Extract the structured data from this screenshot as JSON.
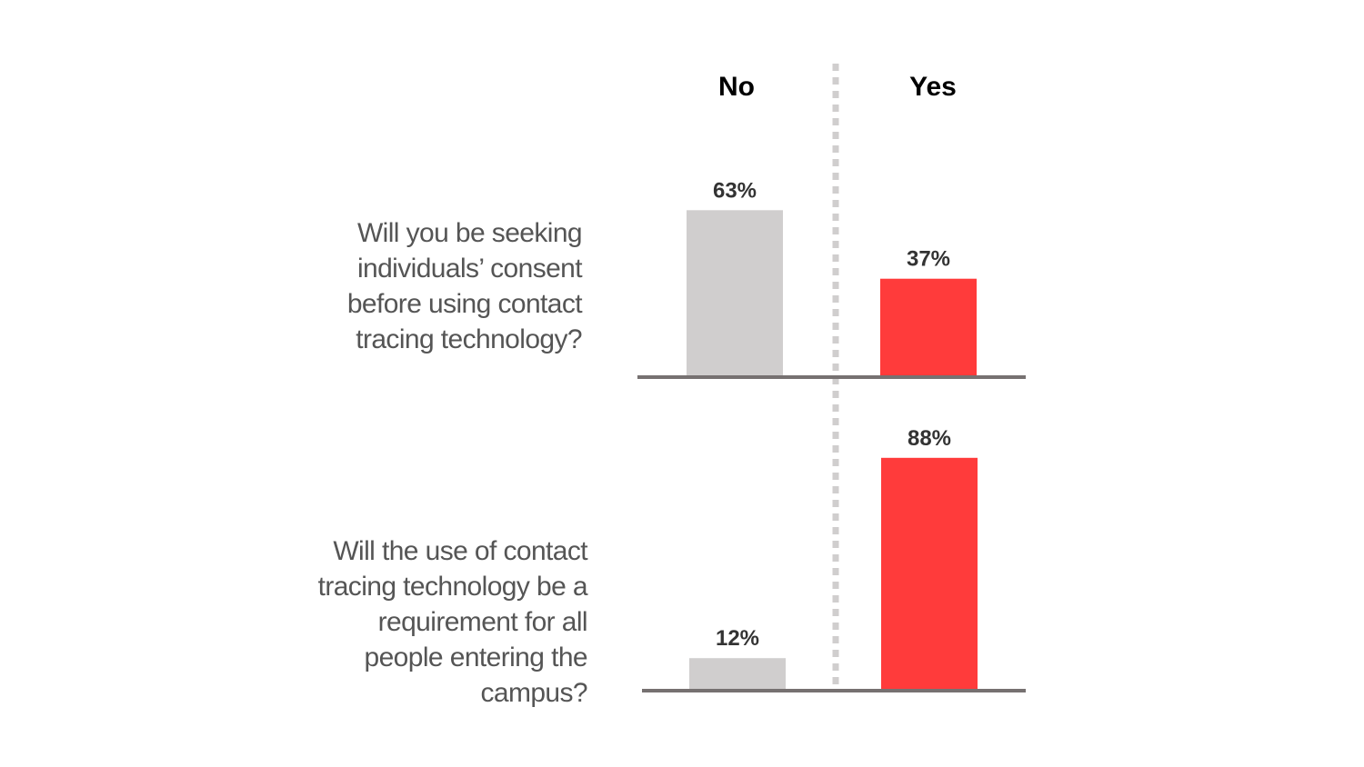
{
  "chart_data": {
    "type": "bar",
    "categories": [
      "No",
      "Yes"
    ],
    "questions": [
      {
        "label": "Will you be seeking individuals’ consent before using contact tracing technology?",
        "values": [
          63,
          37
        ],
        "value_labels": [
          "63%",
          "37%"
        ]
      },
      {
        "label": "Will the use of contact tracing technology be a requirement for all people entering the campus?",
        "values": [
          12,
          88
        ],
        "value_labels": [
          "12%",
          "88%"
        ]
      }
    ],
    "ylim": [
      0,
      100
    ],
    "colors": {
      "No": "#d0cece",
      "Yes": "#ff3b3b",
      "baseline": "#767171",
      "divider": "#d0cece"
    },
    "grid": false
  }
}
